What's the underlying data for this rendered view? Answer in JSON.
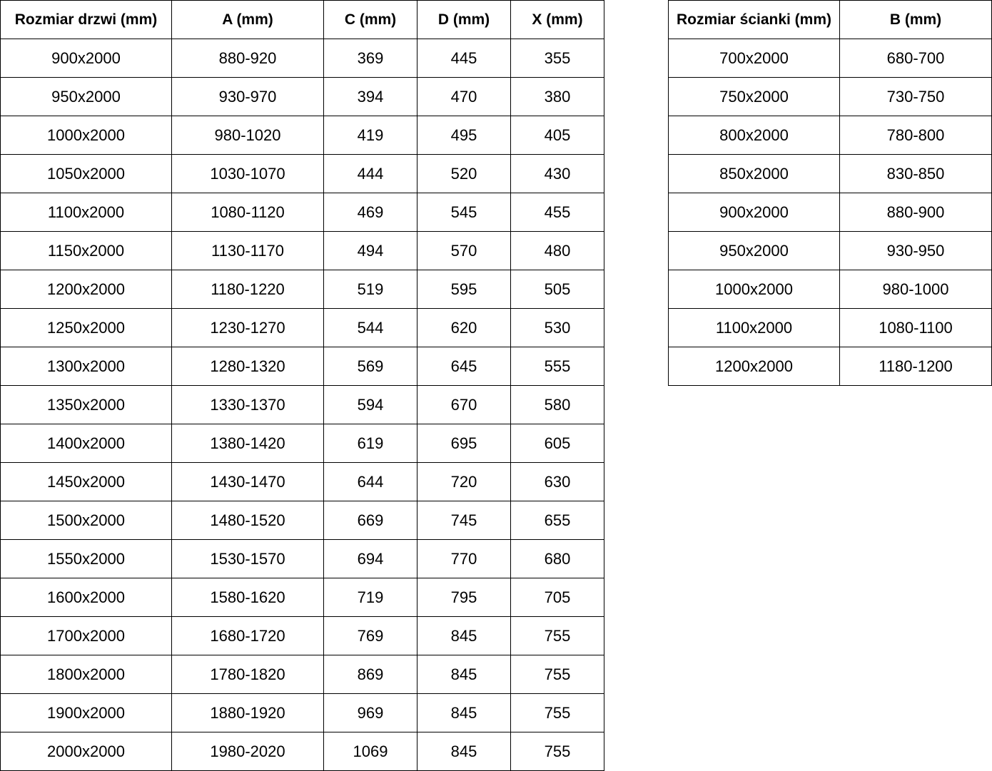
{
  "doors_table": {
    "headers": [
      "Rozmiar drzwi (mm)",
      "A (mm)",
      "C (mm)",
      "D (mm)",
      "X (mm)"
    ],
    "rows": [
      [
        "900x2000",
        "880-920",
        "369",
        "445",
        "355"
      ],
      [
        "950x2000",
        "930-970",
        "394",
        "470",
        "380"
      ],
      [
        "1000x2000",
        "980-1020",
        "419",
        "495",
        "405"
      ],
      [
        "1050x2000",
        "1030-1070",
        "444",
        "520",
        "430"
      ],
      [
        "1100x2000",
        "1080-1120",
        "469",
        "545",
        "455"
      ],
      [
        "1150x2000",
        "1130-1170",
        "494",
        "570",
        "480"
      ],
      [
        "1200x2000",
        "1180-1220",
        "519",
        "595",
        "505"
      ],
      [
        "1250x2000",
        "1230-1270",
        "544",
        "620",
        "530"
      ],
      [
        "1300x2000",
        "1280-1320",
        "569",
        "645",
        "555"
      ],
      [
        "1350x2000",
        "1330-1370",
        "594",
        "670",
        "580"
      ],
      [
        "1400x2000",
        "1380-1420",
        "619",
        "695",
        "605"
      ],
      [
        "1450x2000",
        "1430-1470",
        "644",
        "720",
        "630"
      ],
      [
        "1500x2000",
        "1480-1520",
        "669",
        "745",
        "655"
      ],
      [
        "1550x2000",
        "1530-1570",
        "694",
        "770",
        "680"
      ],
      [
        "1600x2000",
        "1580-1620",
        "719",
        "795",
        "705"
      ],
      [
        "1700x2000",
        "1680-1720",
        "769",
        "845",
        "755"
      ],
      [
        "1800x2000",
        "1780-1820",
        "869",
        "845",
        "755"
      ],
      [
        "1900x2000",
        "1880-1920",
        "969",
        "845",
        "755"
      ],
      [
        "2000x2000",
        "1980-2020",
        "1069",
        "845",
        "755"
      ]
    ]
  },
  "panel_table": {
    "headers": [
      "Rozmiar ścianki (mm)",
      "B (mm)"
    ],
    "rows": [
      [
        "700x2000",
        "680-700"
      ],
      [
        "750x2000",
        "730-750"
      ],
      [
        "800x2000",
        "780-800"
      ],
      [
        "850x2000",
        "830-850"
      ],
      [
        "900x2000",
        "880-900"
      ],
      [
        "950x2000",
        "930-950"
      ],
      [
        "1000x2000",
        "980-1000"
      ],
      [
        "1100x2000",
        "1080-1100"
      ],
      [
        "1200x2000",
        "1180-1200"
      ]
    ]
  }
}
